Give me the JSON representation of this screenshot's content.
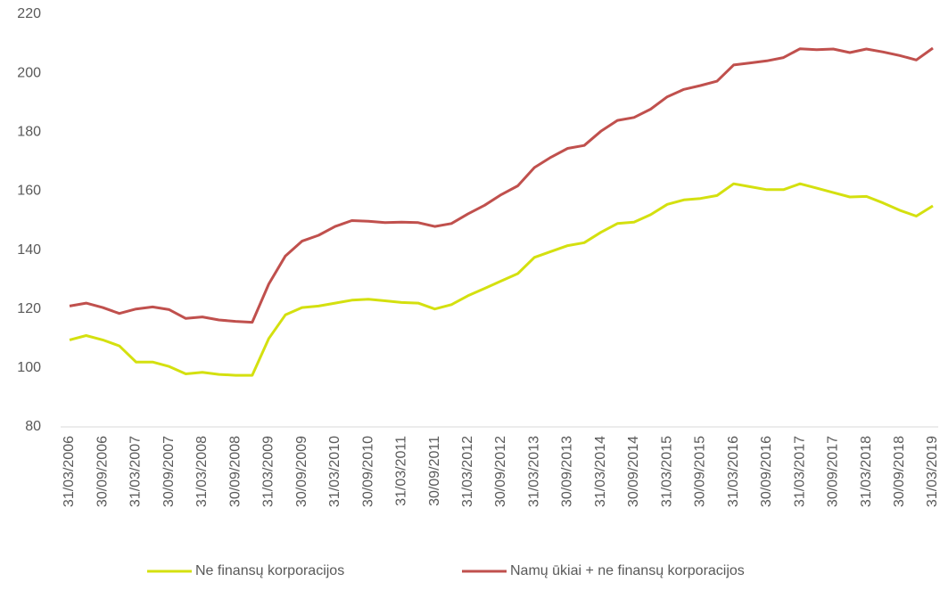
{
  "chart_data": {
    "type": "line",
    "categories": [
      "31/03/2006",
      null,
      "30/09/2006",
      null,
      "31/03/2007",
      null,
      "30/09/2007",
      null,
      "31/03/2008",
      null,
      "30/09/2008",
      null,
      "31/03/2009",
      null,
      "30/09/2009",
      null,
      "31/03/2010",
      null,
      "30/09/2010",
      null,
      "31/03/2011",
      null,
      "30/09/2011",
      null,
      "31/03/2012",
      null,
      "30/09/2012",
      null,
      "31/03/2013",
      null,
      "30/09/2013",
      null,
      "31/03/2014",
      null,
      "30/09/2014",
      null,
      "31/03/2015",
      null,
      "30/09/2015",
      null,
      "31/03/2016",
      null,
      "30/09/2016",
      null,
      "31/03/2017",
      null,
      "30/09/2017",
      null,
      "31/03/2018",
      null,
      "30/09/2018",
      null,
      "31/03/2019"
    ],
    "series": [
      {
        "name": "Ne finansų korporacijos",
        "color": "#d4e00f",
        "values": [
          109.5,
          111,
          109.5,
          107.5,
          102,
          102,
          100.5,
          98,
          98.5,
          97.8,
          97.5,
          97.5,
          110,
          118,
          120.5,
          121,
          122,
          123,
          123.3,
          122.8,
          122.2,
          122,
          120,
          121.5,
          124.5,
          127,
          129.5,
          132,
          137.5,
          139.5,
          141.5,
          142.5,
          146,
          149,
          149.5,
          152,
          155.5,
          157,
          157.5,
          158.5,
          162.5,
          161.5,
          160.5,
          160.5,
          162.5,
          161,
          159.5,
          158,
          158.2,
          156,
          153.5,
          151.5,
          155
        ]
      },
      {
        "name": "Namų ūkiai + ne finansų korporacijos",
        "color": "#c0504d",
        "values": [
          121,
          122,
          120.5,
          118.5,
          120,
          120.7,
          119.8,
          116.8,
          117.3,
          116.3,
          115.8,
          115.5,
          128.5,
          138,
          143,
          145,
          148,
          150,
          149.8,
          149.3,
          149.5,
          149.3,
          148,
          149,
          152.3,
          155.2,
          158.8,
          161.8,
          168,
          171.5,
          174.5,
          175.5,
          180.3,
          184,
          185,
          187.8,
          192,
          194.5,
          195.8,
          197.3,
          202.8,
          203.5,
          204.2,
          205.3,
          208.3,
          208,
          208.2,
          207,
          208.2,
          207.2,
          206,
          204.5,
          208.5
        ]
      }
    ],
    "ylim": [
      80,
      220
    ],
    "yticks": [
      80,
      100,
      120,
      140,
      160,
      180,
      200,
      220
    ],
    "grid": false,
    "legend": "bottom"
  }
}
